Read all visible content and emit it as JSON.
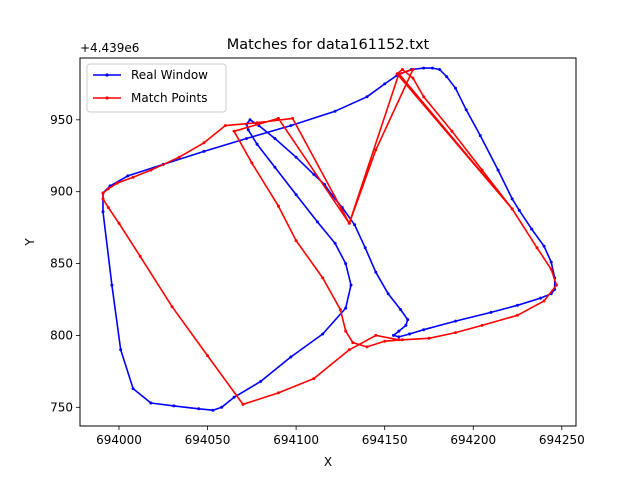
{
  "chart_data": {
    "type": "line",
    "title": "Matches for data161152.txt",
    "xlabel": "X",
    "ylabel": "Y",
    "y_offset_label": "+4.439e6",
    "xlim": [
      693978,
      694258
    ],
    "ylim": [
      737,
      993
    ],
    "x_ticks": [
      694000,
      694050,
      694100,
      694150,
      694200,
      694250
    ],
    "x_tick_labels": [
      "694000",
      "694050",
      "694100",
      "694150",
      "694200",
      "694250"
    ],
    "y_ticks": [
      750,
      800,
      850,
      900,
      950
    ],
    "y_tick_labels": [
      "750",
      "800",
      "850",
      "900",
      "950"
    ],
    "legend": {
      "position": "upper-left",
      "entries": [
        "Real Window",
        "Match Points"
      ]
    },
    "series": [
      {
        "name": "Real Window",
        "color": "#0000ff",
        "x": [
          694157,
          694165,
          694172,
          694177,
          694181,
          694185,
          694190,
          694196,
          694204,
          694214,
          694222,
          694226,
          694233,
          694240,
          694244,
          694246,
          694246,
          694244,
          694238,
          694225,
          694210,
          694190,
          694172,
          694164,
          694158,
          694155,
          694158,
          694162,
          694163,
          694159,
          694152,
          694145,
          694139,
          694133,
          694126,
          694120,
          694116,
          694110,
          694100,
          694088,
          694079,
          694074,
          694072,
          694073,
          694078,
          694088,
          694100,
          694112,
          694122,
          694128,
          694131,
          694128,
          694115,
          694097,
          694080,
          694065,
          694058,
          694053,
          694045,
          694031,
          694018,
          694008,
          694001,
          693996,
          693991,
          693991,
          693995,
          694005,
          694025,
          694048,
          694072,
          694097,
          694122,
          694140,
          694150,
          694157
        ],
        "y": [
          981,
          985,
          986,
          986,
          985,
          980,
          972,
          957,
          939,
          915,
          895,
          887,
          874,
          862,
          851,
          840,
          832,
          829,
          826,
          821,
          816,
          810,
          804,
          801,
          799,
          800,
          803,
          807,
          811,
          818,
          829,
          844,
          861,
          877,
          889,
          898,
          905,
          912,
          924,
          937,
          946,
          950,
          947,
          943,
          933,
          917,
          898,
          879,
          864,
          850,
          835,
          819,
          801,
          785,
          768,
          757,
          750,
          748,
          749,
          751,
          753,
          763,
          790,
          835,
          886,
          899,
          904,
          911,
          919,
          928,
          937,
          946,
          956,
          966,
          975,
          981
        ],
        "marker_step": 1
      },
      {
        "name": "Match Points",
        "color": "#ff0000",
        "x": [
          694158,
          694166,
          694145,
          694130,
          694090,
          694065,
          694075,
          694090,
          694100,
          694115,
          694125,
          694128,
          694132,
          694140,
          694150,
          694160,
          694175,
          694190,
          694205,
          694225,
          694240,
          694247,
          694244,
          694236,
          694222,
          694205,
          694188,
          694172,
          694166,
          694160,
          694157,
          694222,
          694158,
          694130,
          694098,
          694078,
          694060,
          694048,
          694034,
          694018,
          694008,
          693999,
          693994,
          693991,
          693991,
          693994,
          694000,
          694012,
          694030,
          694050,
          694070,
          694090,
          694110,
          694130,
          694145,
          694158
        ],
        "y": [
          982,
          985,
          929,
          878,
          951,
          942,
          920,
          890,
          866,
          840,
          818,
          803,
          795,
          792,
          796,
          797,
          798,
          802,
          807,
          814,
          824,
          835,
          846,
          861,
          888,
          915,
          942,
          966,
          979,
          985,
          982,
          888,
          982,
          878,
          951,
          948,
          946,
          934,
          924,
          915,
          910,
          906,
          902,
          899,
          895,
          889,
          878,
          855,
          820,
          786,
          752,
          760,
          770,
          790,
          800,
          797
        ],
        "marker_step": 1
      }
    ]
  }
}
